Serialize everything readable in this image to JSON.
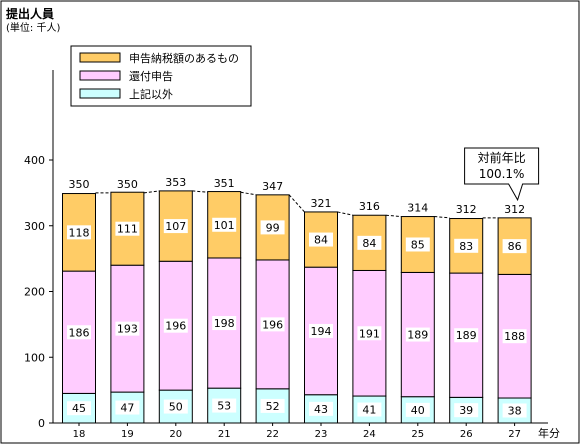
{
  "chart_data": {
    "type": "bar",
    "stacked": true,
    "ylabel_line1": "提出人員",
    "ylabel_line2": "(単位: 千人)",
    "xlabel": "年分",
    "ylim": [
      0,
      400
    ],
    "yticks": [
      0,
      100,
      200,
      300,
      400
    ],
    "categories": [
      "18",
      "19",
      "20",
      "21",
      "22",
      "23",
      "24",
      "25",
      "26",
      "27"
    ],
    "totals": [
      350,
      350,
      353,
      351,
      347,
      321,
      316,
      314,
      312,
      312
    ],
    "series": [
      {
        "name": "上記以外",
        "color": "#ccffff",
        "values": [
          45,
          47,
          50,
          53,
          52,
          43,
          41,
          40,
          39,
          38
        ]
      },
      {
        "name": "還付申告",
        "color": "#ffccff",
        "values": [
          186,
          193,
          196,
          198,
          196,
          194,
          191,
          189,
          189,
          188
        ]
      },
      {
        "name": "申告納税額のあるもの",
        "color": "#ffcc66",
        "values": [
          118,
          111,
          107,
          101,
          99,
          84,
          84,
          85,
          83,
          86
        ]
      }
    ],
    "legend_order": [
      "申告納税額のあるもの",
      "還付申告",
      "上記以外"
    ],
    "legend_position": "top-left",
    "grid": false,
    "annotation": {
      "line1": "対前年比",
      "line2": "100.1%",
      "category": "27"
    }
  }
}
